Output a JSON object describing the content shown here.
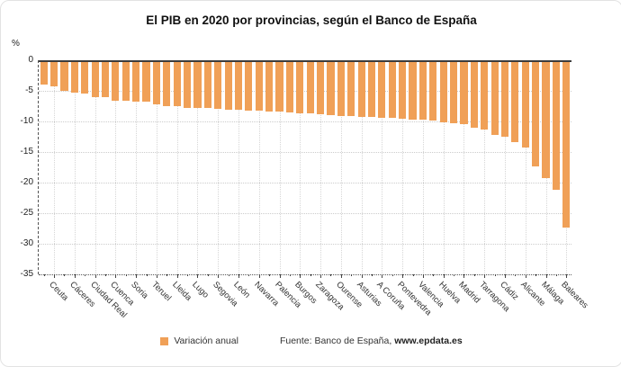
{
  "title": "El PIB en 2020 por provincias, según el Banco de España",
  "y_axis_unit": "%",
  "legend": {
    "label": "Variación anual"
  },
  "source": {
    "prefix": "Fuente: Banco de España, ",
    "bold": "www.epdata.es"
  },
  "colors": {
    "bar": "#F0A057",
    "grid": "#cccccc",
    "axis": "#3d3d3d",
    "text": "#222222"
  },
  "chart_data": {
    "type": "bar",
    "title": "El PIB en 2020 por provincias, según el Banco de España",
    "ylabel": "%",
    "xlabel": "",
    "ylim": [
      -35,
      0
    ],
    "yticks": [
      0,
      -5,
      -10,
      -15,
      -20,
      -25,
      -30,
      -35
    ],
    "grid": true,
    "legend_position": "bottom",
    "legend": [
      "Variación anual"
    ],
    "bar_color": "#F0A057",
    "categories": [
      "",
      "Ceuta",
      "",
      "Cáceres",
      "",
      "Ciudad Real",
      "",
      "Cuenca",
      "",
      "Soria",
      "",
      "Teruel",
      "",
      "Lleida",
      "",
      "Lugo",
      "",
      "Segovia",
      "",
      "León",
      "",
      "Navarra",
      "",
      "Palencia",
      "",
      "Burgos",
      "",
      "Zaragoza",
      "",
      "Ourense",
      "",
      "Asturias",
      "",
      "A Coruña",
      "",
      "Pontevedra",
      "",
      "Valencia",
      "",
      "Huelva",
      "",
      "Madrid",
      "",
      "Tarragona",
      "",
      "Cádiz",
      "",
      "Alicante",
      "",
      "Málaga",
      "",
      "Baleares"
    ],
    "values": [
      -3.9,
      -4.2,
      -5.0,
      -5.3,
      -5.5,
      -6.0,
      -6.1,
      -6.6,
      -6.6,
      -6.7,
      -6.8,
      -7.2,
      -7.5,
      -7.5,
      -7.8,
      -7.8,
      -7.8,
      -7.9,
      -8.1,
      -8.1,
      -8.2,
      -8.2,
      -8.4,
      -8.4,
      -8.5,
      -8.7,
      -8.7,
      -8.8,
      -8.9,
      -9.1,
      -9.1,
      -9.3,
      -9.3,
      -9.4,
      -9.4,
      -9.6,
      -9.7,
      -9.7,
      -9.9,
      -10.1,
      -10.3,
      -10.4,
      -11.0,
      -11.3,
      -12.2,
      -12.5,
      -13.4,
      -14.2,
      -17.3,
      -19.2,
      -21.2,
      -27.3
    ]
  }
}
